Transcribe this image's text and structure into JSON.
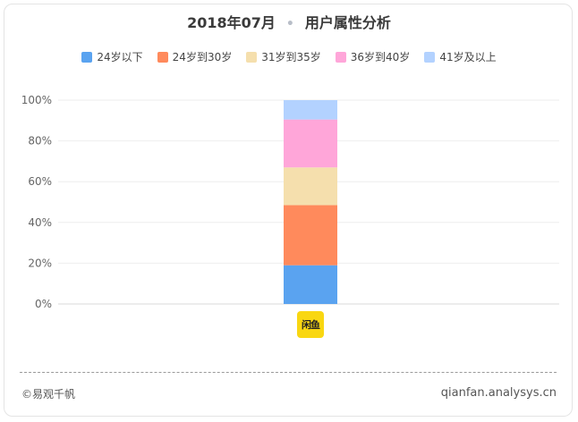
{
  "header": {
    "period": "2018年07月",
    "title": "用户属性分析"
  },
  "chart_data": {
    "type": "bar",
    "stacked": true,
    "categories": [
      ""
    ],
    "series": [
      {
        "name": "24岁以下",
        "values": [
          19
        ],
        "color": "#5aa3f0"
      },
      {
        "name": "24岁到30岁",
        "values": [
          29.5
        ],
        "color": "#ff8a5c"
      },
      {
        "name": "31岁到35岁",
        "values": [
          18.5
        ],
        "color": "#f5dfad"
      },
      {
        "name": "36岁到40岁",
        "values": [
          23.5
        ],
        "color": "#ffa6d9"
      },
      {
        "name": "41岁及以上",
        "values": [
          9.5
        ],
        "color": "#b3d2ff"
      }
    ],
    "ylim": [
      0,
      100
    ],
    "yticks": [
      "0%",
      "20%",
      "40%",
      "60%",
      "80%",
      "100%"
    ],
    "grid": true,
    "legend_position": "top"
  },
  "category_icon": {
    "name": "xianyu-app-icon",
    "text": "闲鱼"
  },
  "footer": {
    "left": "©易观千帆",
    "right": "qianfan.analysys.cn"
  }
}
